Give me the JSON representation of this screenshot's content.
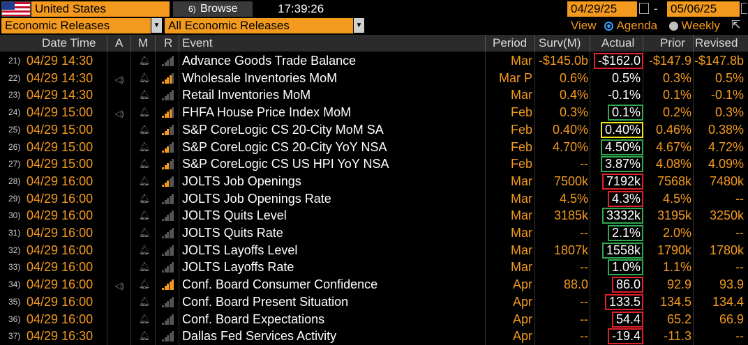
{
  "toolbar": {
    "country": "United States",
    "browse_label": "Browse",
    "browse_num": "6)",
    "clock": "17:39:26",
    "date_from": "04/29/25",
    "date_to": "05/06/25",
    "date_sep": "-",
    "category": "Economic Releases",
    "filter": "All Economic Releases",
    "view_label": "View",
    "view_agenda": "Agenda",
    "view_weekly": "Weekly"
  },
  "columns": {
    "datetime": "Date Time",
    "a": "A",
    "m": "M",
    "r": "R",
    "event": "Event",
    "period": "Period",
    "survey": "Surv(M)",
    "actual": "Actual",
    "prior": "Prior",
    "revised": "Revised"
  },
  "colors": {
    "orange": "#f39a1e",
    "beat": "#2fa84f",
    "miss": "#e0202a",
    "inline": "#f2e21a"
  },
  "rows": [
    {
      "num": "21)",
      "datetime": "04/29 14:30",
      "alert": "",
      "rel": "0",
      "event": "Advance Goods Trade Balance",
      "period": "Mar",
      "survey": "-$145.0b",
      "actual": "-$162.0",
      "prior": "-$147.9",
      "revised": "-$147.8b",
      "box": "red"
    },
    {
      "num": "22)",
      "datetime": "04/29 14:30",
      "alert": "speaker",
      "rel": "4",
      "event": "Wholesale Inventories MoM",
      "period": "Mar P",
      "survey": "0.6%",
      "actual": "0.5%",
      "prior": "0.3%",
      "revised": "0.5%",
      "box": ""
    },
    {
      "num": "23)",
      "datetime": "04/29 14:30",
      "alert": "",
      "rel": "0",
      "event": "Retail Inventories MoM",
      "period": "Mar",
      "survey": "0.4%",
      "actual": "-0.1%",
      "prior": "0.1%",
      "revised": "-0.1%",
      "box": ""
    },
    {
      "num": "24)",
      "datetime": "04/29 15:00",
      "alert": "speaker",
      "rel": "4",
      "event": "FHFA House Price Index MoM",
      "period": "Feb",
      "survey": "0.3%",
      "actual": "0.1%",
      "prior": "0.2%",
      "revised": "0.3%",
      "box": "green"
    },
    {
      "num": "25)",
      "datetime": "04/29 15:00",
      "alert": "",
      "rel": "3",
      "event": "S&P CoreLogic CS 20-City MoM SA",
      "period": "Feb",
      "survey": "0.40%",
      "actual": "0.40%",
      "prior": "0.46%",
      "revised": "0.38%",
      "box": "yellow"
    },
    {
      "num": "26)",
      "datetime": "04/29 15:00",
      "alert": "",
      "rel": "3",
      "event": "S&P CoreLogic CS 20-City YoY NSA",
      "period": "Feb",
      "survey": "4.70%",
      "actual": "4.50%",
      "prior": "4.67%",
      "revised": "4.72%",
      "box": "green"
    },
    {
      "num": "27)",
      "datetime": "04/29 15:00",
      "alert": "",
      "rel": "3",
      "event": "S&P CoreLogic CS US HPI YoY NSA",
      "period": "Feb",
      "survey": "--",
      "actual": "3.87%",
      "prior": "4.08%",
      "revised": "4.09%",
      "box": "green"
    },
    {
      "num": "28)",
      "datetime": "04/29 16:00",
      "alert": "",
      "rel": "3",
      "event": "JOLTS Job Openings",
      "period": "Mar",
      "survey": "7500k",
      "actual": "7192k",
      "prior": "7568k",
      "revised": "7480k",
      "box": "red"
    },
    {
      "num": "29)",
      "datetime": "04/29 16:00",
      "alert": "",
      "rel": "0",
      "event": "JOLTS Job Openings Rate",
      "period": "Mar",
      "survey": "4.5%",
      "actual": "4.3%",
      "prior": "4.5%",
      "revised": "--",
      "box": "red"
    },
    {
      "num": "30)",
      "datetime": "04/29 16:00",
      "alert": "",
      "rel": "0",
      "event": "JOLTS Quits Level",
      "period": "Mar",
      "survey": "3185k",
      "actual": "3332k",
      "prior": "3195k",
      "revised": "3250k",
      "box": "green"
    },
    {
      "num": "31)",
      "datetime": "04/29 16:00",
      "alert": "",
      "rel": "0",
      "event": "JOLTS Quits Rate",
      "period": "Mar",
      "survey": "--",
      "actual": "2.1%",
      "prior": "2.0%",
      "revised": "--",
      "box": "green"
    },
    {
      "num": "32)",
      "datetime": "04/29 16:00",
      "alert": "",
      "rel": "0",
      "event": "JOLTS Layoffs Level",
      "period": "Mar",
      "survey": "1807k",
      "actual": "1558k",
      "prior": "1790k",
      "revised": "1780k",
      "box": "green"
    },
    {
      "num": "33)",
      "datetime": "04/29 16:00",
      "alert": "",
      "rel": "0",
      "event": "JOLTS Layoffs Rate",
      "period": "Mar",
      "survey": "--",
      "actual": "1.0%",
      "prior": "1.1%",
      "revised": "--",
      "box": "green"
    },
    {
      "num": "34)",
      "datetime": "04/29 16:00",
      "alert": "speaker",
      "rel": "5",
      "event": "Conf. Board Consumer Confidence",
      "period": "Apr",
      "survey": "88.0",
      "actual": "86.0",
      "prior": "92.9",
      "revised": "93.9",
      "box": "red"
    },
    {
      "num": "35)",
      "datetime": "04/29 16:00",
      "alert": "",
      "rel": "0",
      "event": "Conf. Board Present Situation",
      "period": "Apr",
      "survey": "--",
      "actual": "133.5",
      "prior": "134.5",
      "revised": "134.4",
      "box": "red"
    },
    {
      "num": "36)",
      "datetime": "04/29 16:00",
      "alert": "",
      "rel": "0",
      "event": "Conf. Board Expectations",
      "period": "Apr",
      "survey": "--",
      "actual": "54.4",
      "prior": "65.2",
      "revised": "66.9",
      "box": "red"
    },
    {
      "num": "37)",
      "datetime": "04/29 16:30",
      "alert": "",
      "rel": "0",
      "event": "Dallas Fed Services Activity",
      "period": "Apr",
      "survey": "--",
      "actual": "-19.4",
      "prior": "-11.3",
      "revised": "--",
      "box": "red"
    }
  ]
}
